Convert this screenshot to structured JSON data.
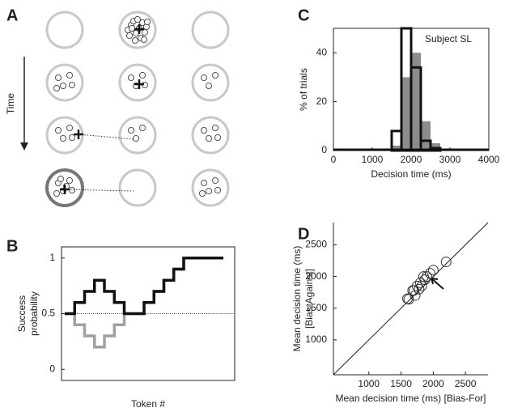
{
  "diagram": {
    "panel": "A",
    "axis_label": "Time"
  },
  "chart_data": [
    {
      "type": "line",
      "step": true,
      "panel": "B",
      "xlabel": "Token #",
      "ylabel": [
        "Success",
        "probability"
      ],
      "ylim": [
        -0.1,
        1.1
      ],
      "yticks": [
        0,
        0.5,
        1
      ],
      "reference_line": 0.5,
      "series": [
        {
          "color": "#a0a0a0",
          "values": [
            0.5,
            0.4,
            0.3,
            0.2,
            0.3,
            0.4,
            0.5,
            0.5,
            0.6,
            0.7,
            0.8,
            0.9,
            1,
            1,
            1,
            1
          ]
        },
        {
          "color": "#111111",
          "values": [
            0.5,
            0.6,
            0.7,
            0.8,
            0.7,
            0.6,
            0.5,
            0.5,
            0.6,
            0.7,
            0.8,
            0.9,
            1,
            1,
            1,
            1
          ]
        }
      ]
    },
    {
      "type": "histogram",
      "panel": "C",
      "title": "Subject SL",
      "xlabel": "Decision time (ms)",
      "ylabel": "% of trials",
      "xlim": [
        0,
        4000
      ],
      "xticks": [
        0,
        1000,
        2000,
        3000,
        4000
      ],
      "ylim": [
        0,
        50
      ],
      "yticks": [
        0,
        20,
        40
      ],
      "bins": [
        1500,
        1750,
        2000,
        2250,
        2500,
        2750
      ],
      "series": [
        {
          "color": "#8c8c8c",
          "fill": true,
          "values": [
            2,
            30,
            40,
            12,
            3
          ]
        },
        {
          "color": "#111111",
          "fill": false,
          "values": [
            8,
            50,
            34,
            4,
            1
          ]
        }
      ]
    },
    {
      "type": "scatter",
      "panel": "D",
      "xlabel": "Mean decision time (ms) [Bias-For]",
      "ylabel": [
        "Mean decision time (ms)",
        "[Bias-Against]"
      ],
      "xlim": [
        450,
        2850
      ],
      "ylim": [
        450,
        2850
      ],
      "xticks": [
        1000,
        1500,
        2000,
        2500
      ],
      "yticks": [
        1000,
        1500,
        2000,
        2500
      ],
      "diagonal": true,
      "x": [
        1600,
        1620,
        1700,
        1720,
        1780,
        1800,
        1820,
        1850,
        1870,
        1900,
        1950,
        2000,
        2200,
        1750,
        1680
      ],
      "values": [
        1650,
        1640,
        1780,
        1700,
        1800,
        1900,
        1850,
        2000,
        1950,
        2000,
        2050,
        2100,
        2230,
        1850,
        1780
      ]
    }
  ]
}
